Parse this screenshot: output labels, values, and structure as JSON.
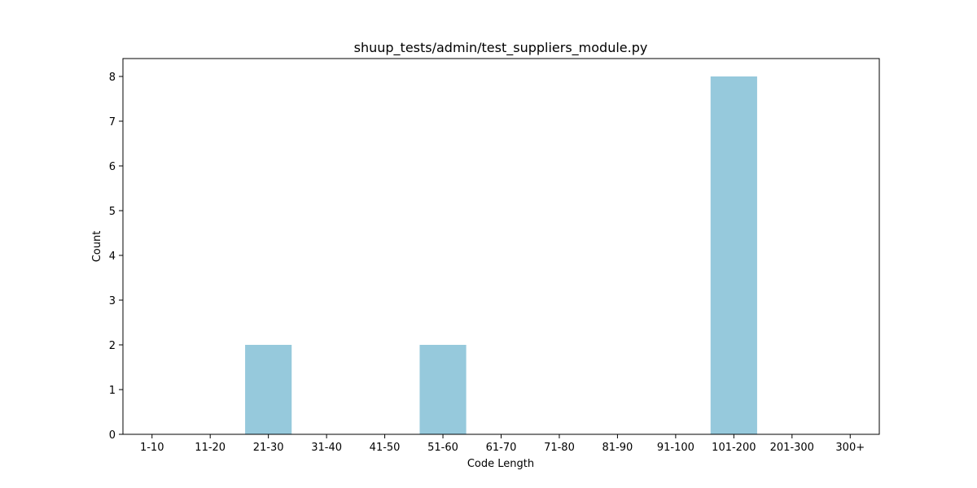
{
  "chart_data": {
    "type": "bar",
    "title": "shuup_tests/admin/test_suppliers_module.py",
    "xlabel": "Code Length",
    "ylabel": "Count",
    "categories": [
      "1-10",
      "11-20",
      "21-30",
      "31-40",
      "41-50",
      "51-60",
      "61-70",
      "71-80",
      "81-90",
      "91-100",
      "101-200",
      "201-300",
      "300+"
    ],
    "values": [
      0,
      0,
      2,
      0,
      0,
      2,
      0,
      0,
      0,
      0,
      8,
      0,
      0
    ],
    "ylim": [
      0,
      8.4
    ],
    "yticks": [
      0,
      1,
      2,
      3,
      4,
      5,
      6,
      7,
      8
    ],
    "bar_color": "#96c9dc",
    "grid": false,
    "legend": "none"
  }
}
